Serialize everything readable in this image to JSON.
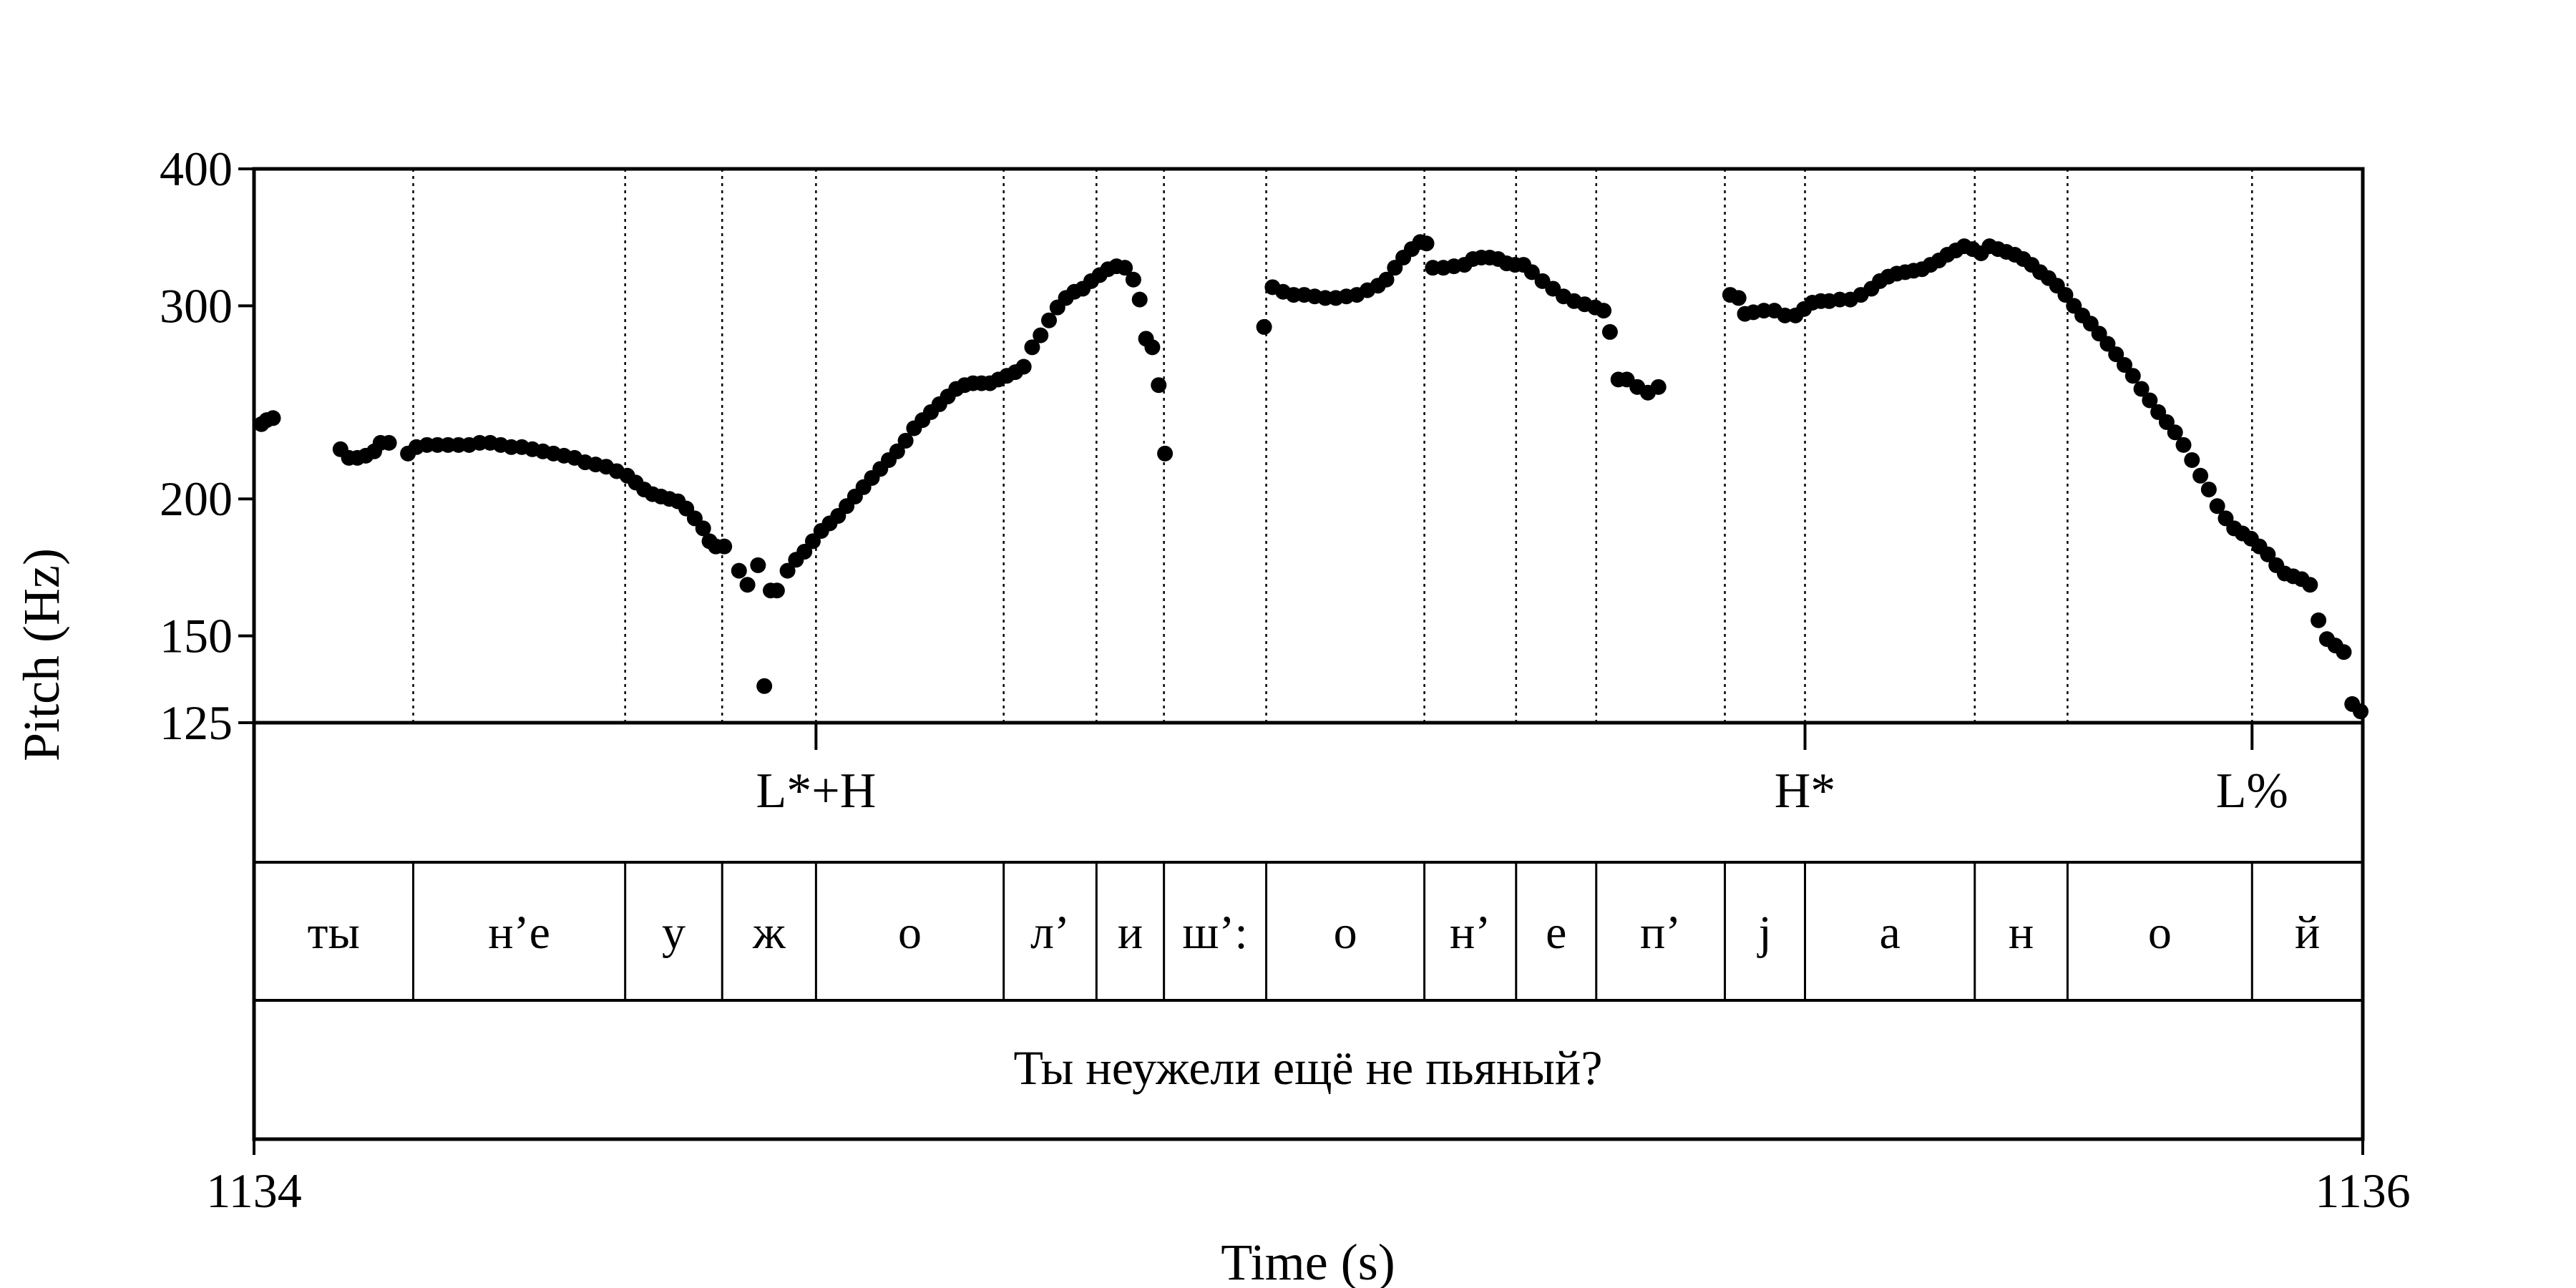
{
  "chart_data": {
    "type": "scatter",
    "xlabel": "Time (s)",
    "ylabel": "Pitch (Hz)",
    "xlim": [
      1134,
      1136
    ],
    "ylim": [
      125,
      400
    ],
    "yscale": "log",
    "x_ticks": [
      "1134",
      "1136"
    ],
    "y_ticks": [
      {
        "value": 400,
        "label": "400"
      },
      {
        "value": 300,
        "label": "300"
      },
      {
        "value": 200,
        "label": "200"
      },
      {
        "value": 150,
        "label": "150"
      },
      {
        "value": 125,
        "label": "125"
      }
    ],
    "series": [
      {
        "marker": "filled-circle",
        "color": "#000000",
        "points": [
          [
            1134.007,
            234
          ],
          [
            1134.012,
            236
          ],
          [
            1134.018,
            237
          ],
          [
            1134.082,
            222
          ],
          [
            1134.09,
            218
          ],
          [
            1134.098,
            218
          ],
          [
            1134.106,
            219
          ],
          [
            1134.114,
            221
          ],
          [
            1134.12,
            225
          ],
          [
            1134.128,
            225
          ],
          [
            1134.146,
            220
          ],
          [
            1134.154,
            223
          ],
          [
            1134.164,
            224
          ],
          [
            1134.174,
            224
          ],
          [
            1134.184,
            224
          ],
          [
            1134.194,
            224
          ],
          [
            1134.204,
            224
          ],
          [
            1134.214,
            225
          ],
          [
            1134.224,
            225
          ],
          [
            1134.234,
            224
          ],
          [
            1134.244,
            223
          ],
          [
            1134.254,
            223
          ],
          [
            1134.264,
            222
          ],
          [
            1134.274,
            221
          ],
          [
            1134.284,
            220
          ],
          [
            1134.294,
            219
          ],
          [
            1134.304,
            218
          ],
          [
            1134.314,
            216
          ],
          [
            1134.324,
            215
          ],
          [
            1134.334,
            214
          ],
          [
            1134.344,
            212
          ],
          [
            1134.354,
            210
          ],
          [
            1134.362,
            207
          ],
          [
            1134.37,
            204
          ],
          [
            1134.378,
            202
          ],
          [
            1134.386,
            201
          ],
          [
            1134.394,
            200
          ],
          [
            1134.402,
            199
          ],
          [
            1134.41,
            196
          ],
          [
            1134.418,
            192
          ],
          [
            1134.426,
            188
          ],
          [
            1134.432,
            183
          ],
          [
            1134.438,
            181
          ],
          [
            1134.446,
            181
          ],
          [
            1134.46,
            172
          ],
          [
            1134.468,
            167
          ],
          [
            1134.478,
            174
          ],
          [
            1134.484,
            135
          ],
          [
            1134.49,
            165
          ],
          [
            1134.496,
            165
          ],
          [
            1134.506,
            172
          ],
          [
            1134.514,
            176
          ],
          [
            1134.522,
            179
          ],
          [
            1134.53,
            183
          ],
          [
            1134.538,
            187
          ],
          [
            1134.546,
            190
          ],
          [
            1134.554,
            193
          ],
          [
            1134.562,
            197
          ],
          [
            1134.57,
            201
          ],
          [
            1134.578,
            205
          ],
          [
            1134.586,
            209
          ],
          [
            1134.594,
            213
          ],
          [
            1134.602,
            217
          ],
          [
            1134.61,
            221
          ],
          [
            1134.618,
            226
          ],
          [
            1134.626,
            232
          ],
          [
            1134.634,
            236
          ],
          [
            1134.642,
            240
          ],
          [
            1134.65,
            244
          ],
          [
            1134.658,
            248
          ],
          [
            1134.666,
            252
          ],
          [
            1134.674,
            254
          ],
          [
            1134.682,
            255
          ],
          [
            1134.69,
            255
          ],
          [
            1134.698,
            255
          ],
          [
            1134.706,
            257
          ],
          [
            1134.714,
            259
          ],
          [
            1134.722,
            261
          ],
          [
            1134.73,
            264
          ],
          [
            1134.738,
            275
          ],
          [
            1134.746,
            282
          ],
          [
            1134.754,
            291
          ],
          [
            1134.762,
            299
          ],
          [
            1134.77,
            305
          ],
          [
            1134.778,
            309
          ],
          [
            1134.786,
            311
          ],
          [
            1134.794,
            316
          ],
          [
            1134.802,
            320
          ],
          [
            1134.81,
            324
          ],
          [
            1134.818,
            326
          ],
          [
            1134.826,
            325
          ],
          [
            1134.834,
            317
          ],
          [
            1134.84,
            304
          ],
          [
            1134.846,
            280
          ],
          [
            1134.852,
            275
          ],
          [
            1134.858,
            254
          ],
          [
            1134.864,
            220
          ],
          [
            1134.958,
            287
          ],
          [
            1134.966,
            312
          ],
          [
            1134.976,
            309
          ],
          [
            1134.986,
            307
          ],
          [
            1134.996,
            307
          ],
          [
            1135.006,
            306
          ],
          [
            1135.016,
            305
          ],
          [
            1135.026,
            305
          ],
          [
            1135.036,
            306
          ],
          [
            1135.046,
            307
          ],
          [
            1135.056,
            310
          ],
          [
            1135.066,
            313
          ],
          [
            1135.074,
            317
          ],
          [
            1135.082,
            325
          ],
          [
            1135.09,
            332
          ],
          [
            1135.098,
            338
          ],
          [
            1135.106,
            343
          ],
          [
            1135.112,
            342
          ],
          [
            1135.118,
            325
          ],
          [
            1135.128,
            325
          ],
          [
            1135.138,
            326
          ],
          [
            1135.148,
            327
          ],
          [
            1135.156,
            331
          ],
          [
            1135.164,
            332
          ],
          [
            1135.172,
            332
          ],
          [
            1135.18,
            331
          ],
          [
            1135.188,
            328
          ],
          [
            1135.196,
            327
          ],
          [
            1135.204,
            327
          ],
          [
            1135.212,
            322
          ],
          [
            1135.222,
            316
          ],
          [
            1135.232,
            311
          ],
          [
            1135.242,
            306
          ],
          [
            1135.252,
            303
          ],
          [
            1135.262,
            301
          ],
          [
            1135.272,
            299
          ],
          [
            1135.28,
            297
          ],
          [
            1135.286,
            284
          ],
          [
            1135.294,
            257
          ],
          [
            1135.302,
            257
          ],
          [
            1135.312,
            253
          ],
          [
            1135.322,
            250
          ],
          [
            1135.332,
            253
          ],
          [
            1135.4,
            307
          ],
          [
            1135.408,
            305
          ],
          [
            1135.414,
            295
          ],
          [
            1135.422,
            296
          ],
          [
            1135.432,
            297
          ],
          [
            1135.442,
            297
          ],
          [
            1135.452,
            294
          ],
          [
            1135.462,
            294
          ],
          [
            1135.47,
            298
          ],
          [
            1135.478,
            302
          ],
          [
            1135.486,
            303
          ],
          [
            1135.494,
            303
          ],
          [
            1135.504,
            304
          ],
          [
            1135.514,
            304
          ],
          [
            1135.524,
            307
          ],
          [
            1135.534,
            311
          ],
          [
            1135.542,
            316
          ],
          [
            1135.55,
            319
          ],
          [
            1135.558,
            321
          ],
          [
            1135.566,
            322
          ],
          [
            1135.574,
            323
          ],
          [
            1135.582,
            324
          ],
          [
            1135.59,
            327
          ],
          [
            1135.598,
            330
          ],
          [
            1135.606,
            334
          ],
          [
            1135.614,
            337
          ],
          [
            1135.622,
            340
          ],
          [
            1135.63,
            338
          ],
          [
            1135.638,
            335
          ],
          [
            1135.646,
            340
          ],
          [
            1135.654,
            338
          ],
          [
            1135.662,
            336
          ],
          [
            1135.67,
            334
          ],
          [
            1135.678,
            331
          ],
          [
            1135.686,
            327
          ],
          [
            1135.694,
            322
          ],
          [
            1135.702,
            318
          ],
          [
            1135.71,
            313
          ],
          [
            1135.718,
            307
          ],
          [
            1135.726,
            300
          ],
          [
            1135.734,
            294
          ],
          [
            1135.742,
            289
          ],
          [
            1135.75,
            283
          ],
          [
            1135.758,
            277
          ],
          [
            1135.766,
            271
          ],
          [
            1135.774,
            265
          ],
          [
            1135.782,
            259
          ],
          [
            1135.79,
            252
          ],
          [
            1135.798,
            246
          ],
          [
            1135.806,
            240
          ],
          [
            1135.814,
            235
          ],
          [
            1135.822,
            230
          ],
          [
            1135.83,
            224
          ],
          [
            1135.838,
            217
          ],
          [
            1135.846,
            210
          ],
          [
            1135.854,
            204
          ],
          [
            1135.862,
            197
          ],
          [
            1135.87,
            192
          ],
          [
            1135.878,
            188
          ],
          [
            1135.886,
            186
          ],
          [
            1135.894,
            184
          ],
          [
            1135.902,
            181
          ],
          [
            1135.91,
            178
          ],
          [
            1135.918,
            174
          ],
          [
            1135.926,
            171
          ],
          [
            1135.934,
            170
          ],
          [
            1135.942,
            169
          ],
          [
            1135.95,
            167
          ],
          [
            1135.958,
            155
          ],
          [
            1135.966,
            149
          ],
          [
            1135.974,
            147
          ],
          [
            1135.982,
            145
          ],
          [
            1135.99,
            130
          ],
          [
            1135.998,
            128
          ]
        ]
      }
    ],
    "boundaries": [
      1134.151,
      1134.352,
      1134.444,
      1134.533,
      1134.711,
      1134.799,
      1134.863,
      1134.96,
      1135.11,
      1135.197,
      1135.273,
      1135.395,
      1135.471,
      1135.632,
      1135.72,
      1135.895
    ],
    "tones": [
      {
        "label": "L*+H",
        "time": 1134.533
      },
      {
        "label": "H*",
        "time": 1135.471
      },
      {
        "label": "L%",
        "time": 1135.895
      }
    ],
    "segments": [
      "ты",
      "н’е",
      "у",
      "ж",
      "о",
      "л’",
      "и",
      "ш’:",
      "о",
      "н’",
      "е",
      "п’",
      "j",
      "а",
      "н",
      "о",
      "й"
    ],
    "utterance": "Ты неужели ещё не пьяный?"
  }
}
